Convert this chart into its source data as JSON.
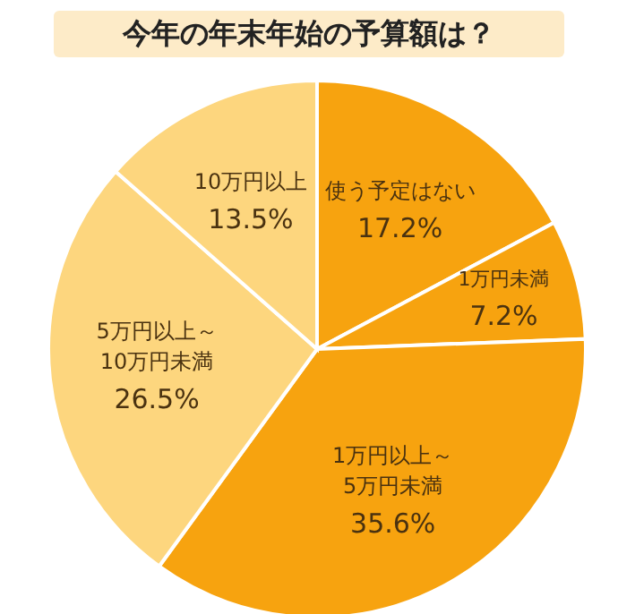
{
  "chart_data": {
    "type": "pie",
    "title": "今年の年末年始の予算額は？",
    "categories": [
      "使う予定はない",
      "1万円未満",
      "1万円以上～5万円未満",
      "5万円以上～10万円未満",
      "10万円以上"
    ],
    "values": [
      17.2,
      7.2,
      35.6,
      26.5,
      13.5
    ],
    "value_labels": [
      "17.2%",
      "7.2%",
      "35.6%",
      "26.5%",
      "13.5%"
    ],
    "colors": [
      "#f7a30f",
      "#f7a30f",
      "#f7a30f",
      "#fdd67e",
      "#fdd67e"
    ],
    "legend": false
  }
}
